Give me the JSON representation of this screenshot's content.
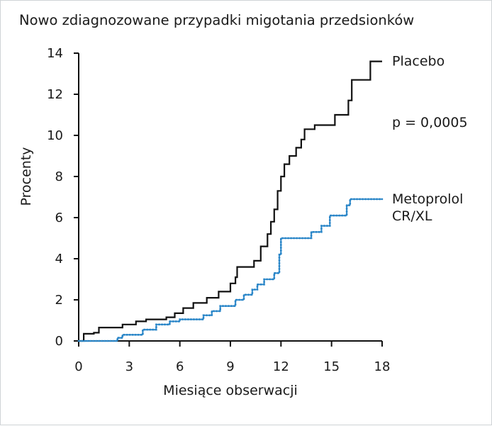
{
  "chart_data": {
    "type": "line",
    "title": "Nowo zdiagnozowane przypadki migotania przedsionków",
    "xlabel": "Miesiące obserwacji",
    "ylabel": "Procenty",
    "xlim": [
      0,
      18
    ],
    "ylim": [
      0,
      14
    ],
    "x_ticks": [
      "0",
      "3",
      "6",
      "9",
      "12",
      "15",
      "18"
    ],
    "y_ticks": [
      "0",
      "2",
      "4",
      "6",
      "8",
      "10",
      "12",
      "14"
    ],
    "grid": false,
    "legend": "inline labels at right of lines",
    "annotation": "p = 0,0005",
    "series": [
      {
        "name": "Placebo",
        "color": "#111111",
        "style": "solid",
        "label_lines": [
          "Placebo"
        ],
        "points": [
          [
            0.0,
            0.0
          ],
          [
            0.3,
            0.35
          ],
          [
            0.9,
            0.4
          ],
          [
            1.2,
            0.65
          ],
          [
            2.6,
            0.8
          ],
          [
            3.4,
            0.95
          ],
          [
            4.0,
            1.05
          ],
          [
            5.2,
            1.15
          ],
          [
            5.7,
            1.35
          ],
          [
            6.2,
            1.6
          ],
          [
            6.8,
            1.85
          ],
          [
            7.6,
            2.1
          ],
          [
            8.3,
            2.4
          ],
          [
            9.0,
            2.8
          ],
          [
            9.3,
            3.1
          ],
          [
            9.4,
            3.6
          ],
          [
            10.4,
            3.9
          ],
          [
            10.8,
            4.6
          ],
          [
            11.2,
            5.2
          ],
          [
            11.4,
            5.8
          ],
          [
            11.6,
            6.4
          ],
          [
            11.8,
            7.3
          ],
          [
            12.0,
            8.0
          ],
          [
            12.2,
            8.6
          ],
          [
            12.5,
            9.0
          ],
          [
            12.9,
            9.4
          ],
          [
            13.2,
            9.8
          ],
          [
            13.4,
            10.3
          ],
          [
            14.0,
            10.5
          ],
          [
            15.2,
            11.0
          ],
          [
            16.0,
            11.7
          ],
          [
            16.2,
            12.7
          ],
          [
            17.3,
            13.6
          ],
          [
            18.0,
            13.6
          ]
        ]
      },
      {
        "name": "Metoprolol CR/XL",
        "color": "#2a86c8",
        "style": "dotted",
        "label_lines": [
          "Metoprolol",
          "CR/XL"
        ],
        "points": [
          [
            0.0,
            0.0
          ],
          [
            2.3,
            0.15
          ],
          [
            2.6,
            0.3
          ],
          [
            3.8,
            0.55
          ],
          [
            4.6,
            0.8
          ],
          [
            5.4,
            0.95
          ],
          [
            6.0,
            1.05
          ],
          [
            7.4,
            1.25
          ],
          [
            7.9,
            1.45
          ],
          [
            8.4,
            1.7
          ],
          [
            9.3,
            2.0
          ],
          [
            9.8,
            2.25
          ],
          [
            10.3,
            2.5
          ],
          [
            10.6,
            2.75
          ],
          [
            11.0,
            3.0
          ],
          [
            11.6,
            3.3
          ],
          [
            11.9,
            4.2
          ],
          [
            12.0,
            5.0
          ],
          [
            13.8,
            5.3
          ],
          [
            14.4,
            5.6
          ],
          [
            14.9,
            6.1
          ],
          [
            15.9,
            6.6
          ],
          [
            16.1,
            6.9
          ],
          [
            18.0,
            6.9
          ]
        ]
      }
    ]
  }
}
